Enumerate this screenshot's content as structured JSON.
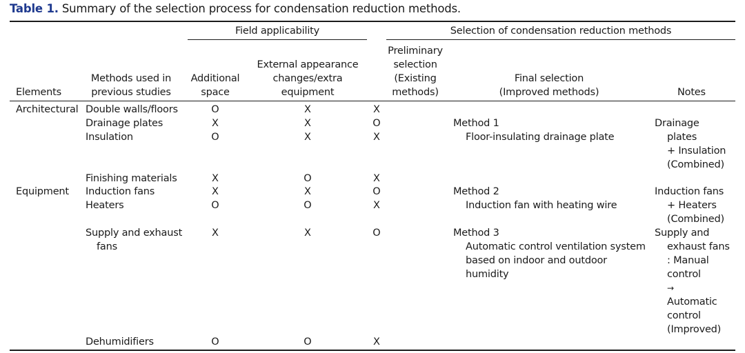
{
  "caption": {
    "label": "Table 1.",
    "text": "Summary of the selection process for condensation reduction methods."
  },
  "header": {
    "group_field": "Field applicability",
    "group_selection": "Selection of condensation reduction methods",
    "col_elements": "Elements",
    "col_methods": [
      "Methods used in",
      "previous studies"
    ],
    "col_space": [
      "Additional",
      "space"
    ],
    "col_appearance": [
      "External appearance",
      "changes/extra",
      "equipment"
    ],
    "col_preliminary": [
      "Preliminary",
      "selection",
      "(Existing",
      "methods)"
    ],
    "col_final": [
      "Final selection",
      "(Improved methods)"
    ],
    "col_notes": "Notes"
  },
  "rows": [
    {
      "element": "Architectural",
      "method": [
        "Double walls/floors"
      ],
      "space": "O",
      "appearance": "X",
      "preliminary": "X"
    },
    {
      "element": "",
      "method": [
        "Drainage plates"
      ],
      "space": "X",
      "appearance": "X",
      "preliminary": "O"
    },
    {
      "element": "",
      "method": [
        "Insulation"
      ],
      "space": "O",
      "appearance": "X",
      "preliminary": "X"
    },
    {
      "element": "",
      "method": [
        "Finishing materials"
      ],
      "space": "X",
      "appearance": "O",
      "preliminary": "X"
    },
    {
      "element": "Equipment",
      "method": [
        "Induction fans"
      ],
      "space": "X",
      "appearance": "X",
      "preliminary": "O"
    },
    {
      "element": "",
      "method": [
        "Heaters"
      ],
      "space": "O",
      "appearance": "O",
      "preliminary": "X"
    },
    {
      "element": "",
      "method": [
        "Supply and exhaust",
        "fans"
      ],
      "space": "X",
      "appearance": "X",
      "preliminary": "O"
    },
    {
      "element": "",
      "method": [
        "Dehumidifiers"
      ],
      "space": "O",
      "appearance": "O",
      "preliminary": "X"
    }
  ],
  "final_methods": [
    {
      "title": "Method 1",
      "desc": [
        "Floor-insulating drainage plate"
      ]
    },
    {
      "title": "Method 2",
      "desc": [
        "Induction fan with heating wire"
      ]
    },
    {
      "title": "Method 3",
      "desc": [
        "Automatic control ventilation system",
        "based on indoor and outdoor",
        "humidity"
      ]
    }
  ],
  "notes": [
    [
      "Drainage",
      "plates",
      "+ Insulation",
      "(Combined)"
    ],
    [
      "Induction fans",
      "+ Heaters",
      "(Combined)"
    ],
    [
      "Supply and",
      "exhaust fans",
      ": Manual",
      "control",
      "→",
      "Automatic",
      "control",
      "(Improved)"
    ]
  ],
  "colors": {
    "caption_label": "#1f3a8f",
    "rule": "#1a1a1a"
  }
}
